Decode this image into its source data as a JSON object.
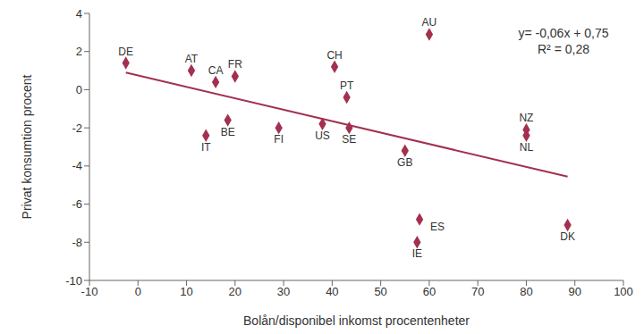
{
  "chart_data": {
    "type": "scatter",
    "x_label": "Bolån/disponibel inkomst procentenheter",
    "y_label": "Privat konsumtion procent",
    "color": "#a3304f",
    "marker": "diamond",
    "grid": false,
    "xlim": [
      -10,
      100
    ],
    "xticks": [
      -10,
      0,
      10,
      20,
      30,
      40,
      50,
      60,
      70,
      80,
      90,
      100
    ],
    "ylim": [
      -10,
      4
    ],
    "yticks": [
      -10,
      -8,
      -6,
      -4,
      -2,
      0,
      2,
      4
    ],
    "labels": [
      "DE",
      "AT",
      "CA",
      "FR",
      "IT",
      "BE",
      "FI",
      "US",
      "CH",
      "PT",
      "SE",
      "GB",
      "AU",
      "ES",
      "IE",
      "NZ",
      "NL",
      "DK"
    ],
    "x": [
      -2.5,
      11,
      16,
      20,
      14,
      18.5,
      29,
      38,
      40.5,
      43,
      43.5,
      55,
      60,
      58,
      57.5,
      80,
      80,
      88.5
    ],
    "values": [
      1.4,
      1.0,
      0.4,
      0.7,
      -2.4,
      -1.6,
      -2.0,
      -1.8,
      1.2,
      -0.4,
      -2.0,
      -3.2,
      2.9,
      -6.8,
      -8.0,
      -2.1,
      -2.4,
      -7.1
    ],
    "trendline": {
      "slope": -0.06,
      "intercept": 0.75,
      "labels": [
        "y= -0,06x + 0,75",
        "R² = 0,28"
      ]
    }
  }
}
